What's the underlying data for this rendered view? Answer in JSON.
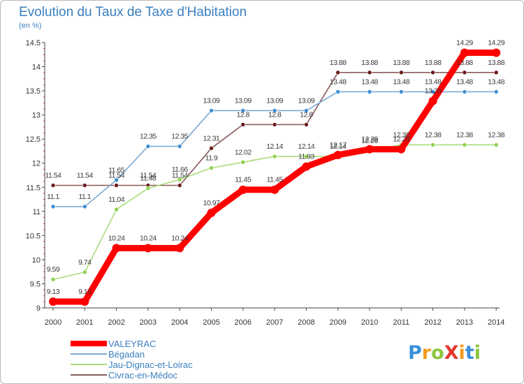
{
  "title": "Evolution du Taux de Taxe d'Habitation",
  "subtitle": "(en %)",
  "logo": {
    "text": "ProXiti",
    "letters": [
      {
        "ch": "P",
        "color": "#3a8fd8"
      },
      {
        "ch": "r",
        "color": "#f39a1c"
      },
      {
        "ch": "o",
        "color": "#8cc63f"
      },
      {
        "ch": "X",
        "color": "#e8362d"
      },
      {
        "ch": "i",
        "color": "#f39a1c"
      },
      {
        "ch": "t",
        "color": "#3a8fd8"
      },
      {
        "ch": "i",
        "color": "#8cc63f"
      }
    ]
  },
  "chart_data": {
    "type": "line",
    "title": "Evolution du Taux de Taxe d'Habitation",
    "ylabel": "(en %)",
    "xlabel": "",
    "x": [
      "2000",
      "2001",
      "2002",
      "2003",
      "2004",
      "2005",
      "2006",
      "2007",
      "2008",
      "2009",
      "2010",
      "2011",
      "2012",
      "2013",
      "2014"
    ],
    "ylim": [
      9,
      14.5
    ],
    "yticks": [
      "9",
      "9.5",
      "10",
      "10.5",
      "11",
      "11.5",
      "12",
      "12.5",
      "13",
      "13.5",
      "14",
      "14.5"
    ],
    "grid": false,
    "legend_position": "bottom-left",
    "series": [
      {
        "name": "Civrac-en-Médoc",
        "color": "#6b1b1b",
        "line_color": "#8a5a5a",
        "values": [
          11.54,
          11.54,
          11.54,
          11.54,
          11.54,
          12.31,
          12.8,
          12.8,
          12.8,
          13.88,
          13.88,
          13.88,
          13.88,
          13.88,
          13.88
        ],
        "labels": [
          "11.54",
          "11.54",
          "11.54",
          "11.54",
          "11.54",
          "12.31",
          "12.8",
          "12.8",
          "12.8",
          "13.88",
          "13.88",
          "13.88",
          "13.88",
          "13.88",
          "13.88"
        ]
      },
      {
        "name": "Jau-Dignac-et-Loirac",
        "color": "#8fd14f",
        "line_color": "#a8dc7a",
        "values": [
          9.59,
          9.74,
          11.04,
          11.48,
          11.66,
          11.9,
          12.02,
          12.14,
          12.14,
          12.14,
          12.26,
          12.38,
          12.38,
          12.38,
          12.38
        ],
        "labels": [
          "9.59",
          "9.74",
          "11.04",
          "11.48",
          "11.66",
          "11.9",
          "12.02",
          "12.14",
          "12.14",
          "12.14",
          "12.26",
          "12.38",
          "12.38",
          "12.38",
          "12.38"
        ]
      },
      {
        "name": "Bégadan",
        "color": "#3f8fd2",
        "line_color": "#7aaad4",
        "values": [
          11.1,
          11.1,
          11.65,
          12.35,
          12.35,
          13.09,
          13.09,
          13.09,
          13.09,
          13.48,
          13.48,
          13.48,
          13.48,
          13.48,
          13.48
        ],
        "labels": [
          "11.1",
          "11.1",
          "11.65",
          "12.35",
          "12.35",
          "13.09",
          "13.09",
          "13.09",
          "13.09",
          "13.48",
          "13.48",
          "13.48",
          "13.48",
          "13.48",
          "13.48"
        ]
      },
      {
        "name": "VALEYRAC",
        "color": "#ff0000",
        "line_color": "#ff0000",
        "values": [
          9.13,
          9.13,
          10.24,
          10.24,
          10.24,
          10.97,
          11.45,
          11.45,
          11.93,
          12.17,
          12.29,
          12.29,
          13.29,
          14.29,
          14.29
        ],
        "labels": [
          "9.13",
          "9.13",
          "10.24",
          "10.24",
          "10.24",
          "10.97",
          "11.45",
          "11.45",
          "11.93",
          "12.17",
          "12.29",
          "12.29",
          "13.29",
          "14.29",
          "14.29"
        ]
      }
    ]
  },
  "legend": [
    {
      "name": "VALEYRAC",
      "color": "#ff0000",
      "thickness": 8
    },
    {
      "name": "Bégadan",
      "color": "#7aaad4",
      "thickness": 2
    },
    {
      "name": "Jau-Dignac-et-Loirac",
      "color": "#a8dc7a",
      "thickness": 2
    },
    {
      "name": "Civrac-en-Médoc",
      "color": "#8a5a5a",
      "thickness": 2
    }
  ]
}
